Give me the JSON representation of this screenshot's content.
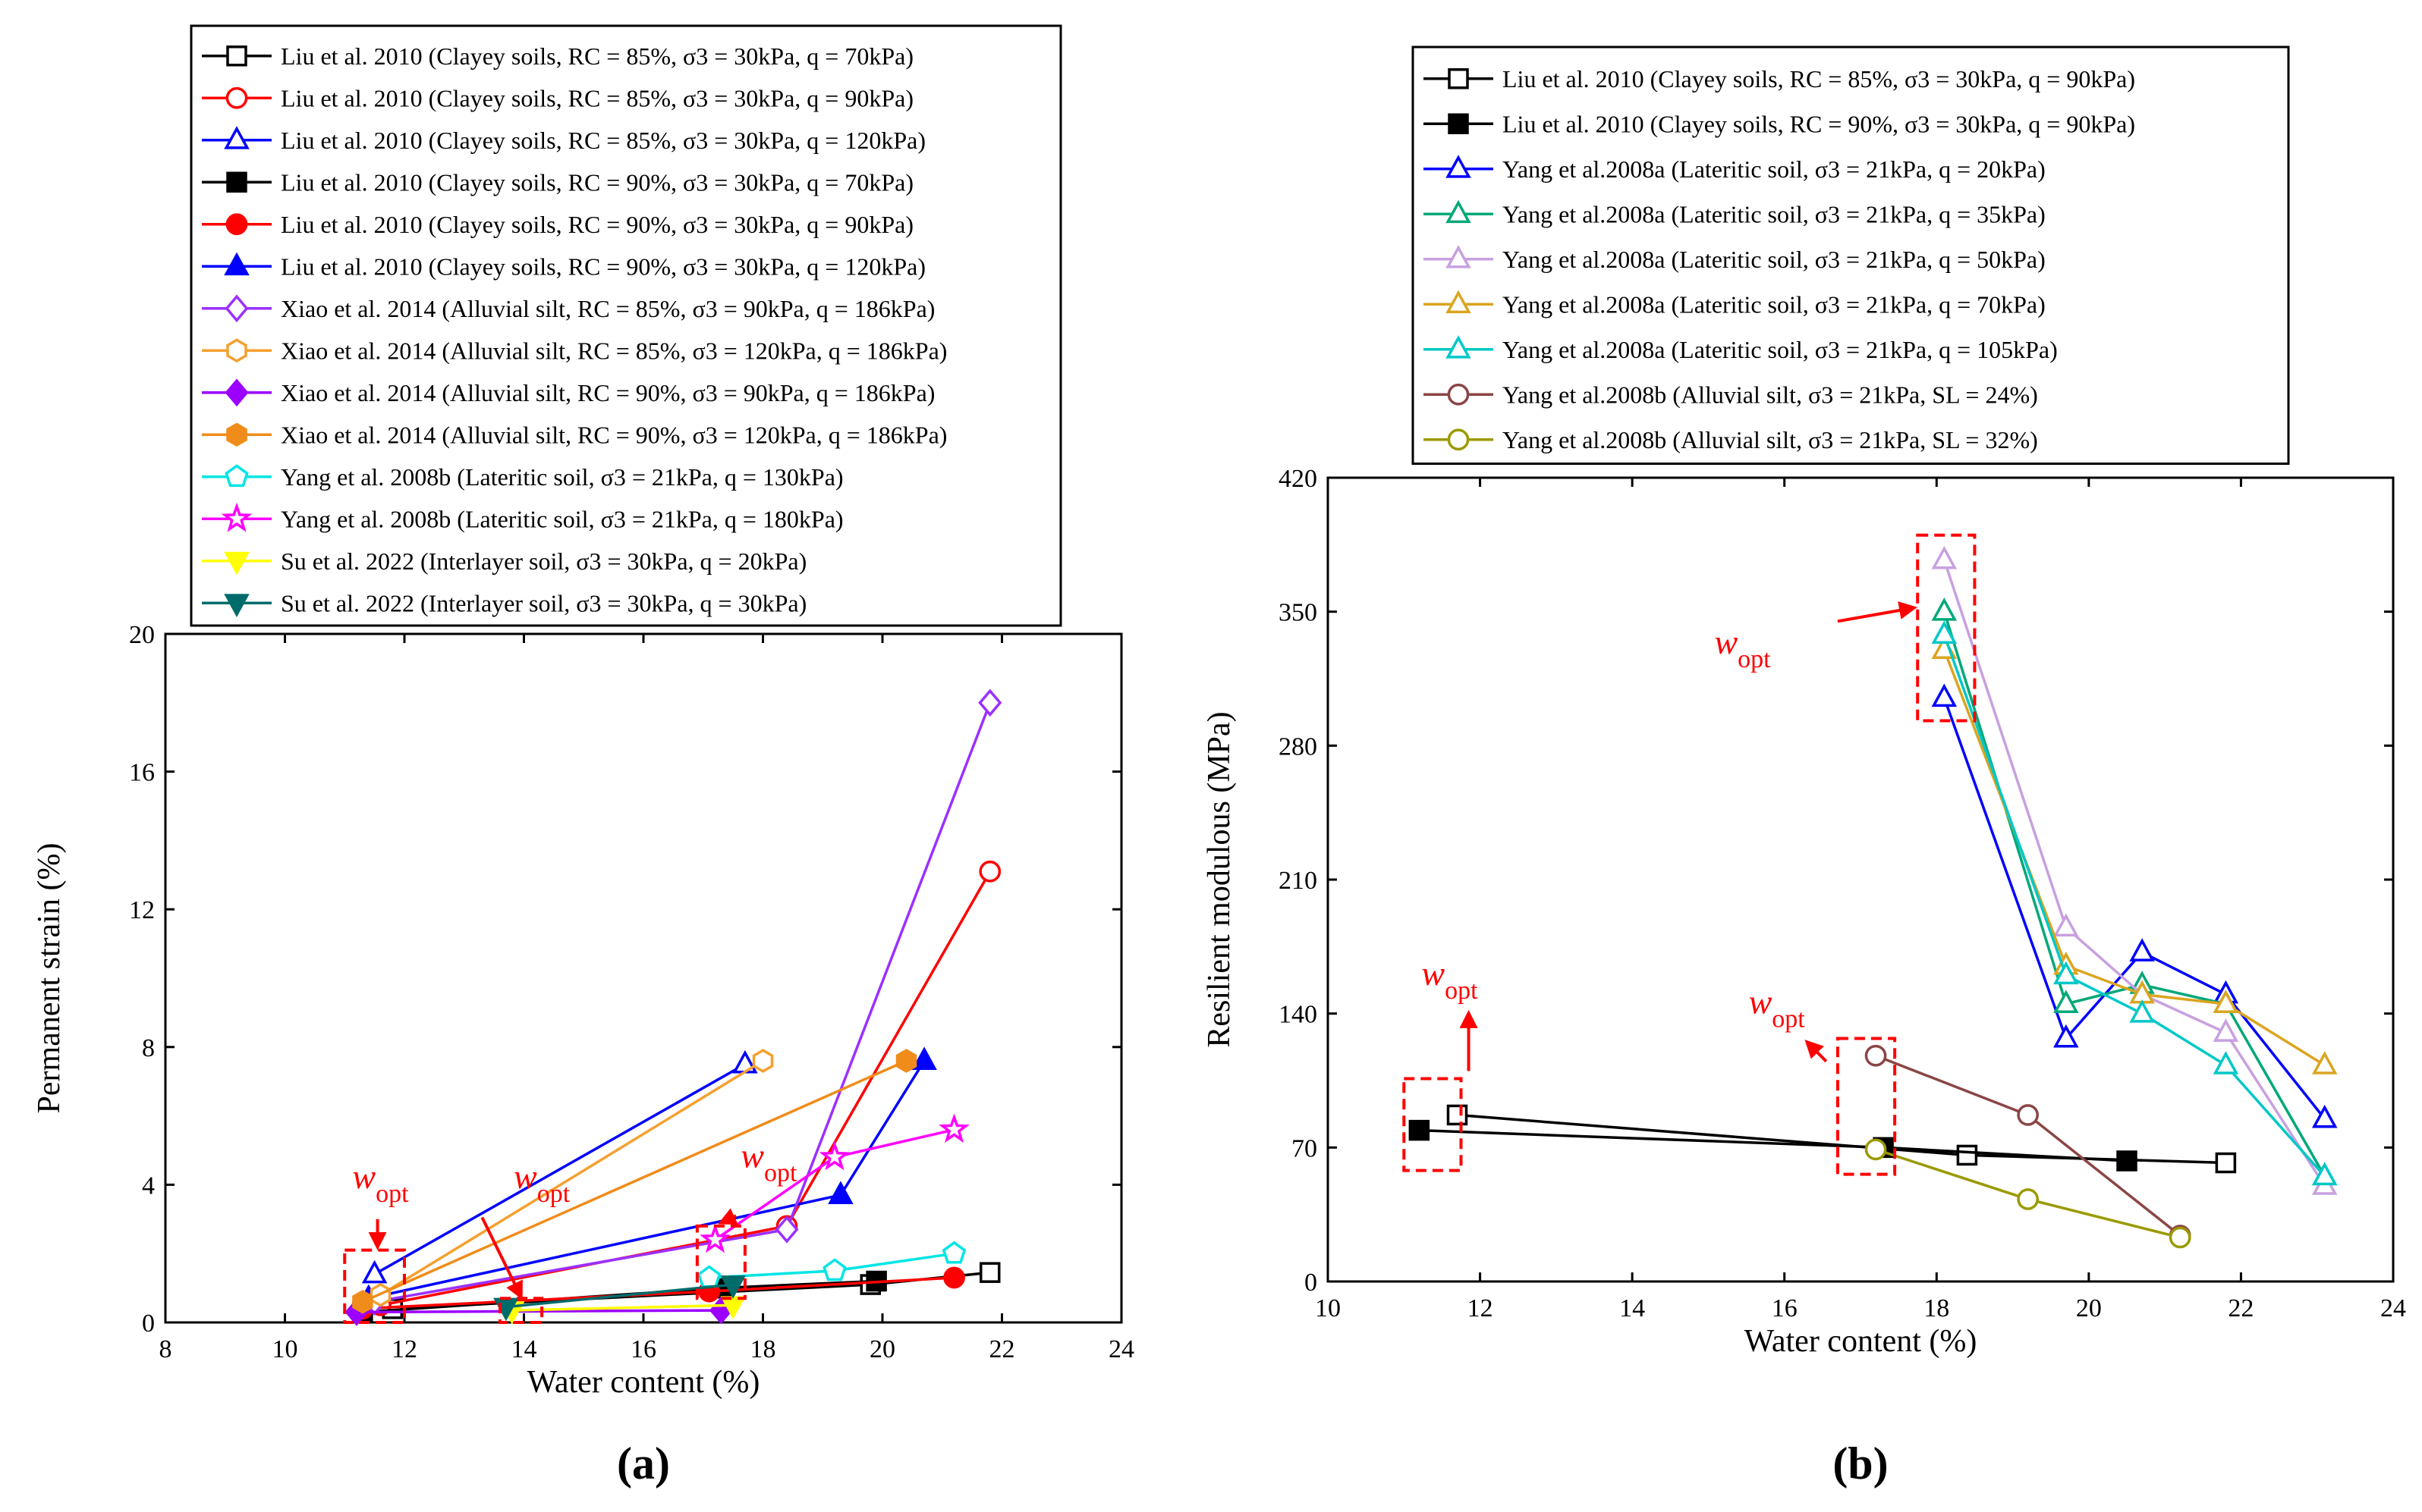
{
  "charts": [
    {
      "panel_label": "(a)",
      "type": "line",
      "xlabel": "Water content (%)",
      "ylabel": "Permanent strain (%)",
      "xlim": [
        8,
        24
      ],
      "ylim": [
        0,
        20
      ],
      "xticks": [
        8,
        10,
        12,
        14,
        16,
        18,
        20,
        22,
        24
      ],
      "yticks": [
        0,
        4,
        8,
        12,
        16,
        20
      ],
      "grid": false,
      "legend_position": "top (above plot)",
      "annotations": [
        {
          "text": "w",
          "sub": "opt",
          "x": 11.6,
          "y": 3.9
        },
        {
          "text": "w",
          "sub": "opt",
          "x": 14.3,
          "y": 3.9
        },
        {
          "text": "w",
          "sub": "opt",
          "x": 18.1,
          "y": 4.5
        }
      ],
      "wopt_boxes": [
        {
          "x0": 11.0,
          "x1": 12.0,
          "y0": 0,
          "y1": 2.1
        },
        {
          "x0": 13.6,
          "x1": 14.3,
          "y0": 0,
          "y1": 0.7
        },
        {
          "x0": 16.9,
          "x1": 17.7,
          "y0": 0.7,
          "y1": 2.8
        }
      ],
      "wopt_arrows": [
        {
          "x0": 11.55,
          "y0": 3.0,
          "x1": 11.55,
          "y1": 2.2
        },
        {
          "x0": 13.3,
          "y0": 3.05,
          "x1": 13.95,
          "y1": 0.75
        },
        {
          "x0": 17.55,
          "y0": 3.1,
          "x1": 17.3,
          "y1": 2.9
        }
      ],
      "series": [
        {
          "name": "Liu et al. 2010 (Clayey soils, RC = 85%, σ3 = 30kPa, q = 70kPa)",
          "color": "#000000",
          "marker": "square",
          "filled": false,
          "x": [
            11.8,
            19.8,
            21.8
          ],
          "y": [
            0.4,
            1.1,
            1.45
          ]
        },
        {
          "name": "Liu et al. 2010 (Clayey soils, RC = 85%, σ3 = 30kPa, q = 90kPa)",
          "color": "#ff0000",
          "marker": "circle",
          "filled": false,
          "x": [
            11.6,
            18.4,
            21.8
          ],
          "y": [
            0.5,
            2.8,
            13.1
          ]
        },
        {
          "name": "Liu et al. 2010 (Clayey soils, RC = 85%, σ3 = 30kPa, q = 120kPa)",
          "color": "#0000ff",
          "marker": "triangle",
          "filled": false,
          "x": [
            11.5,
            17.7
          ],
          "y": [
            1.4,
            7.5
          ]
        },
        {
          "name": "Liu et al. 2010 (Clayey soils, RC = 90%, σ3 = 30kPa, q = 70kPa)",
          "color": "#000000",
          "marker": "square",
          "filled": true,
          "x": [
            11.3,
            17.3,
            19.9
          ],
          "y": [
            0.3,
            1.0,
            1.2
          ]
        },
        {
          "name": "Liu et al. 2010 (Clayey soils, RC = 90%, σ3 = 30kPa, q = 90kPa)",
          "color": "#ff0000",
          "marker": "circle",
          "filled": true,
          "x": [
            11.3,
            17.1,
            21.2
          ],
          "y": [
            0.4,
            0.9,
            1.3
          ]
        },
        {
          "name": "Liu et al. 2010 (Clayey soils, RC = 90%, σ3 = 30kPa, q = 120kPa)",
          "color": "#0000ff",
          "marker": "triangle",
          "filled": true,
          "x": [
            11.4,
            19.3,
            20.7
          ],
          "y": [
            0.7,
            3.7,
            7.6
          ]
        },
        {
          "name": "Xiao et al. 2014 (Alluvial silt, RC = 85%, σ3 = 90kPa, q = 186kPa)",
          "color": "#9b30ff",
          "marker": "diamond",
          "filled": false,
          "x": [
            11.5,
            18.4,
            21.8
          ],
          "y": [
            0.6,
            2.7,
            18.0
          ]
        },
        {
          "name": "Xiao et al. 2014 (Alluvial silt, RC = 85%, σ3 = 120kPa, q = 186kPa)",
          "color": "#f5a030",
          "marker": "hexagon",
          "filled": false,
          "x": [
            11.6,
            18.0
          ],
          "y": [
            0.8,
            7.6
          ]
        },
        {
          "name": "Xiao et al. 2014 (Alluvial silt, RC = 90%, σ3 = 90kPa, q = 186kPa)",
          "color": "#9b00ff",
          "marker": "diamond",
          "filled": true,
          "x": [
            11.2,
            17.3
          ],
          "y": [
            0.3,
            0.35
          ]
        },
        {
          "name": "Xiao et al. 2014 (Alluvial silt, RC = 90%, σ3 = 120kPa, q = 186kPa)",
          "color": "#f08c1a",
          "marker": "hexagon",
          "filled": true,
          "x": [
            11.3,
            20.4
          ],
          "y": [
            0.6,
            7.6
          ]
        },
        {
          "name": "Yang et al. 2008b (Lateritic soil, σ3 = 21kPa, q = 130kPa)",
          "color": "#00e5e5",
          "marker": "pentagon",
          "filled": false,
          "x": [
            17.1,
            19.2,
            21.2
          ],
          "y": [
            1.3,
            1.5,
            2.0
          ]
        },
        {
          "name": "Yang et al. 2008b (Lateritic soil, σ3 = 21kPa, q = 180kPa)",
          "color": "#ff00ff",
          "marker": "star",
          "filled": false,
          "x": [
            17.2,
            19.2,
            21.2
          ],
          "y": [
            2.4,
            4.8,
            5.6
          ]
        },
        {
          "name": "Su et al. 2022 (Interlayer soil, σ3 = 30kPa, q = 20kPa)",
          "color": "#ffff00",
          "marker": "invtriangle",
          "filled": true,
          "x": [
            13.8,
            17.5
          ],
          "y": [
            0.35,
            0.5
          ]
        },
        {
          "name": "Su et al. 2022 (Interlayer soil, σ3 = 30kPa, q = 30kPa)",
          "color": "#006b6b",
          "marker": "invtriangle",
          "filled": true,
          "x": [
            13.7,
            17.5
          ],
          "y": [
            0.45,
            1.1
          ]
        }
      ]
    },
    {
      "panel_label": "(b)",
      "type": "line",
      "xlabel": "Water content (%)",
      "ylabel": "Resilient modulous (MPa)",
      "xlim": [
        10,
        24
      ],
      "ylim": [
        0,
        420
      ],
      "xticks": [
        10,
        12,
        14,
        16,
        18,
        20,
        22,
        24
      ],
      "yticks": [
        0,
        70,
        140,
        210,
        280,
        350,
        420
      ],
      "grid": false,
      "legend_position": "top (above plot)",
      "annotations": [
        {
          "text": "w",
          "sub": "opt",
          "x": 11.6,
          "y": 155
        },
        {
          "text": "w",
          "sub": "opt",
          "x": 15.9,
          "y": 140
        },
        {
          "text": "w",
          "sub": "opt",
          "x": 15.45,
          "y": 328
        }
      ],
      "wopt_boxes": [
        {
          "x0": 11.0,
          "x1": 11.75,
          "y0": 58,
          "y1": 106
        },
        {
          "x0": 16.7,
          "x1": 17.45,
          "y0": 56,
          "y1": 127
        },
        {
          "x0": 17.75,
          "x1": 18.5,
          "y0": 293,
          "y1": 390
        }
      ],
      "wopt_arrows": [
        {
          "x0": 11.85,
          "y0": 110,
          "x1": 11.85,
          "y1": 140
        },
        {
          "x0": 16.55,
          "y0": 115,
          "x1": 16.3,
          "y1": 125
        },
        {
          "x0": 16.7,
          "y0": 345,
          "x1": 17.7,
          "y1": 352
        }
      ],
      "series": [
        {
          "name": "Liu et al. 2010 (Clayey soils, RC = 85%, σ3 = 30kPa, q = 90kPa)",
          "color": "#000000",
          "marker": "square",
          "filled": false,
          "x": [
            11.7,
            18.4,
            21.8
          ],
          "y": [
            87,
            66,
            62
          ]
        },
        {
          "name": "Liu et al. 2010 (Clayey soils, RC = 90%, σ3 = 30kPa, q = 90kPa)",
          "color": "#000000",
          "marker": "square",
          "filled": true,
          "x": [
            11.2,
            17.3,
            20.5
          ],
          "y": [
            79,
            70,
            63
          ]
        },
        {
          "name": "Yang et al.2008a (Lateritic soil, σ3 = 21kPa, q = 20kPa)",
          "color": "#0000ff",
          "marker": "triangle",
          "filled": false,
          "x": [
            18.1,
            19.7,
            20.7,
            21.8,
            23.1
          ],
          "y": [
            305,
            127,
            172,
            150,
            85
          ]
        },
        {
          "name": "Yang et al.2008a (Lateritic soil, σ3 = 21kPa, q = 35kPa)",
          "color": "#00a878",
          "marker": "triangle",
          "filled": false,
          "x": [
            18.1,
            19.7,
            20.7,
            21.8,
            23.1
          ],
          "y": [
            350,
            145,
            155,
            145,
            55
          ]
        },
        {
          "name": "Yang et al.2008a (Lateritic soil, σ3 = 21kPa, q = 50kPa)",
          "color": "#c8a0e0",
          "marker": "triangle",
          "filled": false,
          "x": [
            18.1,
            19.7,
            20.7,
            21.8,
            23.1
          ],
          "y": [
            377,
            185,
            150,
            130,
            50
          ]
        },
        {
          "name": "Yang et al.2008a (Lateritic soil, σ3 = 21kPa, q = 70kPa)",
          "color": "#daa520",
          "marker": "triangle",
          "filled": false,
          "x": [
            18.1,
            19.7,
            20.7,
            21.8,
            23.1
          ],
          "y": [
            330,
            165,
            150,
            145,
            113
          ]
        },
        {
          "name": "Yang et al.2008a (Lateritic soil, σ3 = 21kPa, q = 105kPa)",
          "color": "#00c8c8",
          "marker": "triangle",
          "filled": false,
          "x": [
            18.1,
            19.7,
            20.7,
            21.8,
            23.1
          ],
          "y": [
            338,
            160,
            140,
            113,
            55
          ]
        },
        {
          "name": "Yang et al.2008b (Alluvial silt, σ3 = 21kPa, SL = 24%)",
          "color": "#8b4545",
          "marker": "circle",
          "filled": false,
          "x": [
            17.2,
            19.2,
            21.2
          ],
          "y": [
            118,
            87,
            24
          ]
        },
        {
          "name": "Yang et al.2008b (Alluvial silt, σ3 = 21kPa, SL = 32%)",
          "color": "#9a9a00",
          "marker": "circle",
          "filled": false,
          "x": [
            17.2,
            19.2,
            21.2
          ],
          "y": [
            69,
            43,
            23
          ]
        }
      ]
    }
  ]
}
